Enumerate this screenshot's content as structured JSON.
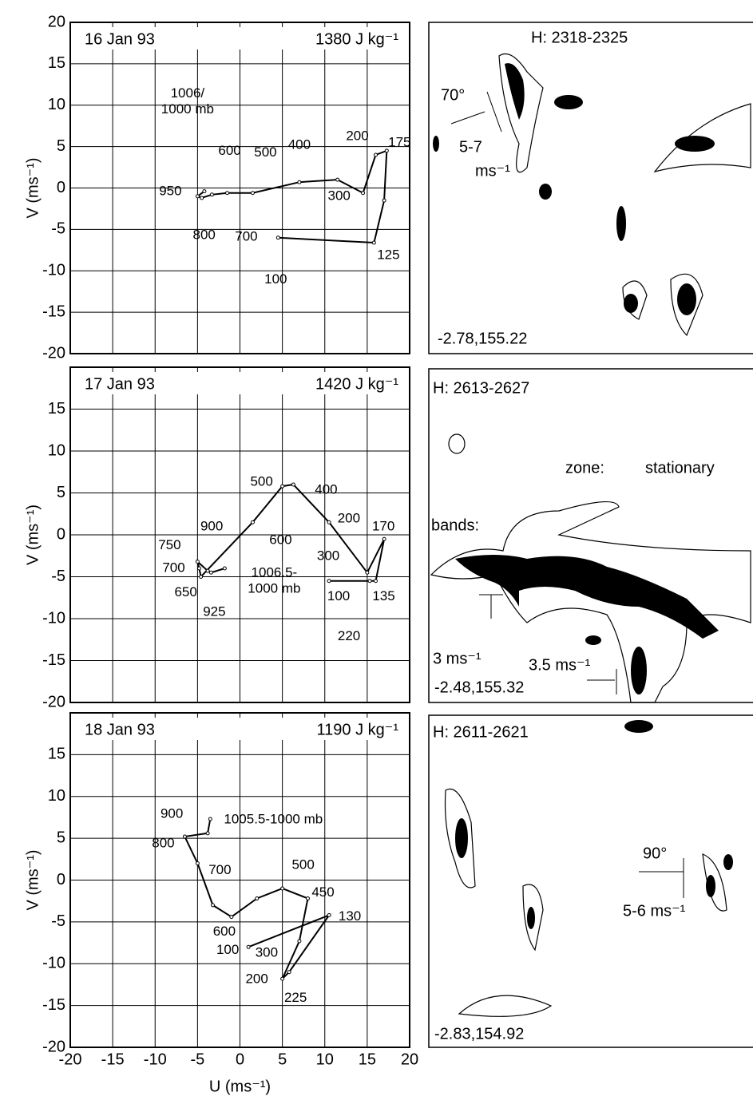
{
  "chart_data": [
    {
      "type": "line",
      "title": "16 Jan 93",
      "subtitle": "1380 J kg⁻¹",
      "ylabel": "V (ms⁻¹)",
      "x": [
        -4.2,
        -5,
        -4.5,
        -3.3,
        -1.5,
        1.5,
        7,
        11.5,
        14.5,
        16,
        17.3,
        17,
        15.8,
        4.5
      ],
      "values": [
        -0.4,
        -1.0,
        -1.2,
        -0.8,
        -0.6,
        -0.6,
        0.7,
        1.0,
        -0.6,
        4,
        4.5,
        -1.5,
        -6.6,
        -6
      ],
      "point_labels": [
        [
          "1006/",
          "1000 mb"
        ],
        "950",
        "800",
        "700",
        "600",
        "500",
        "400",
        "300",
        null,
        "200",
        "175",
        null,
        "125",
        "100"
      ],
      "color": "#000000",
      "xlim": [
        -20,
        20
      ],
      "ylim": [
        -20,
        20
      ],
      "xticks": [
        -20,
        -15,
        -10,
        -5,
        0,
        5,
        10,
        15,
        20
      ],
      "yticks": [
        -20,
        -15,
        -10,
        -5,
        0,
        5,
        10,
        15,
        20
      ],
      "xtick_labels": false,
      "grid": true
    },
    {
      "type": "line",
      "title": "17 Jan 93",
      "subtitle": "1420 J kg⁻¹",
      "ylabel": "V (ms⁻¹)",
      "x": [
        -1.8,
        -3.4,
        -3.8,
        -5.0,
        -4.8,
        -4.6,
        1.5,
        5,
        6.3,
        10.5,
        15,
        17,
        16,
        15.3,
        10.5
      ],
      "values": [
        -4.0,
        -4.5,
        -4.3,
        -3.2,
        -4.0,
        -5.0,
        1.5,
        5.8,
        6.0,
        1.5,
        -4.5,
        -0.5,
        -5.5,
        -5.5,
        -5.5
      ],
      "point_labels": [
        [
          "1006.5-",
          "1000 mb"
        ],
        "925",
        "900",
        "750",
        "700",
        "650",
        "600",
        "500",
        "400",
        "300",
        "200",
        "170",
        "135",
        "220",
        "100"
      ],
      "color": "#000000",
      "xlim": [
        -20,
        20
      ],
      "ylim": [
        -20,
        20
      ],
      "xticks": [
        -20,
        -15,
        -10,
        -5,
        0,
        5,
        10,
        15,
        20
      ],
      "yticks": [
        -20,
        -15,
        -10,
        -5,
        0,
        5,
        10,
        15
      ],
      "xtick_labels": false,
      "grid": true
    },
    {
      "type": "line",
      "title": "18 Jan 93",
      "subtitle": "1190 J kg⁻¹",
      "ylabel": "V (ms⁻¹)",
      "xlabel": "U (ms⁻¹)",
      "x": [
        -3.5,
        -3.8,
        -6.5,
        -5,
        -3.2,
        -1,
        2,
        5,
        8,
        7,
        5,
        5.8,
        10.5,
        1
      ],
      "values": [
        7.3,
        5.6,
        5.2,
        2,
        -3,
        -4.4,
        -2.2,
        -1,
        -2.2,
        -7.3,
        -11.8,
        -11,
        -4.2,
        -8
      ],
      "point_labels": [
        "1005.5-1000 mb",
        "900",
        "800",
        "700",
        null,
        "600",
        null,
        "500",
        "450",
        "300",
        "200",
        "225",
        "130",
        "100"
      ],
      "color": "#000000",
      "xlim": [
        -20,
        20
      ],
      "ylim": [
        -20,
        20
      ],
      "xticks": [
        -20,
        -15,
        -10,
        -5,
        0,
        5,
        10,
        15,
        20
      ],
      "yticks": [
        -20,
        -15,
        -10,
        -5,
        0,
        5,
        10,
        15
      ],
      "xtick_labels": true,
      "grid": true
    }
  ],
  "radar_panels": [
    {
      "header": "H:  2318-2325",
      "angle": "70°",
      "speed": "5-7",
      "unit": "ms⁻¹",
      "coords": "-2.78,155.22"
    },
    {
      "header": "H:  2613-2627",
      "zone": "zone:",
      "kind": "stationary",
      "bands": "bands:",
      "motion": "3  ms⁻¹",
      "motion2": "3.5  ms⁻¹",
      "coords": "-2.48,155.32"
    },
    {
      "header": "H:  2611-2621",
      "angle": "90°",
      "speed": "5-6  ms⁻¹",
      "coords": "-2.83,154.92"
    }
  ]
}
